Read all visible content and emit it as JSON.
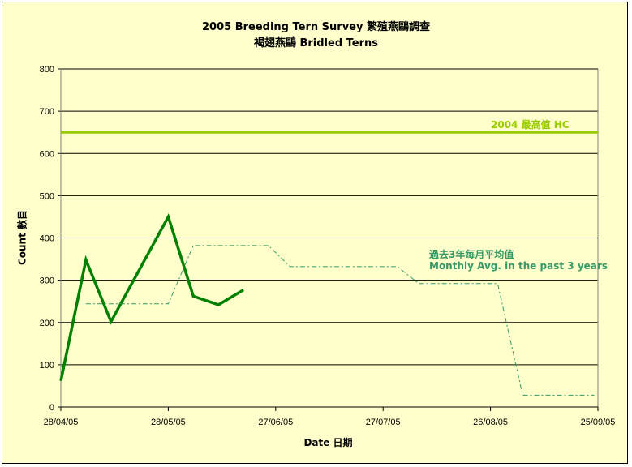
{
  "title": {
    "line1": "2005 Breeding Tern Survey 繁殖燕鷗調查",
    "line2": "褐翅燕鷗 Bridled Terns"
  },
  "colors": {
    "background": "#ffffcc",
    "gridline": "#000000",
    "survey_line": "#008000",
    "hc_line": "#99cc00",
    "avg_line": "#339966"
  },
  "annotations": {
    "hc_label": "2004  最高值  HC",
    "avg_label_1": "過去3年每月平均值",
    "avg_label_2": "Monthly Avg. in the past 3 years"
  },
  "chart_data": {
    "type": "line",
    "xlabel": "Date 日期",
    "ylabel": "Count 數目",
    "ylim": [
      0,
      800
    ],
    "yticks": [
      0,
      100,
      200,
      300,
      400,
      500,
      600,
      700,
      800
    ],
    "xlim": [
      "2005-04-28",
      "2005-09-25"
    ],
    "xtick_labels": [
      "28/04/05",
      "28/05/05",
      "27/06/05",
      "27/07/05",
      "26/08/05",
      "25/09/05"
    ],
    "grid": "horizontal",
    "series": [
      {
        "style": "solid-thick",
        "points": [
          [
            "2005-04-28",
            62
          ],
          [
            "2005-05-05",
            348
          ],
          [
            "2005-05-12",
            202
          ],
          [
            "2005-05-28",
            450
          ],
          [
            "2005-06-04",
            262
          ],
          [
            "2005-06-11",
            242
          ],
          [
            "2005-06-18",
            277
          ]
        ]
      },
      {
        "name": "2004  最高值  HC",
        "style": "solid-horizontal",
        "points": [
          [
            "2005-04-28",
            650
          ],
          [
            "2005-09-25",
            650
          ]
        ]
      },
      {
        "name": "Monthly Avg. in the past 3 years",
        "style": "dash-dot-steps",
        "points": [
          [
            "2005-05-05",
            244
          ],
          [
            "2005-05-28",
            244
          ],
          [
            "2005-06-04",
            382
          ],
          [
            "2005-06-25",
            382
          ],
          [
            "2005-07-01",
            332
          ],
          [
            "2005-07-31",
            332
          ],
          [
            "2005-08-06",
            292
          ],
          [
            "2005-08-28",
            292
          ],
          [
            "2005-09-04",
            28
          ],
          [
            "2005-09-24",
            28
          ]
        ]
      }
    ]
  }
}
